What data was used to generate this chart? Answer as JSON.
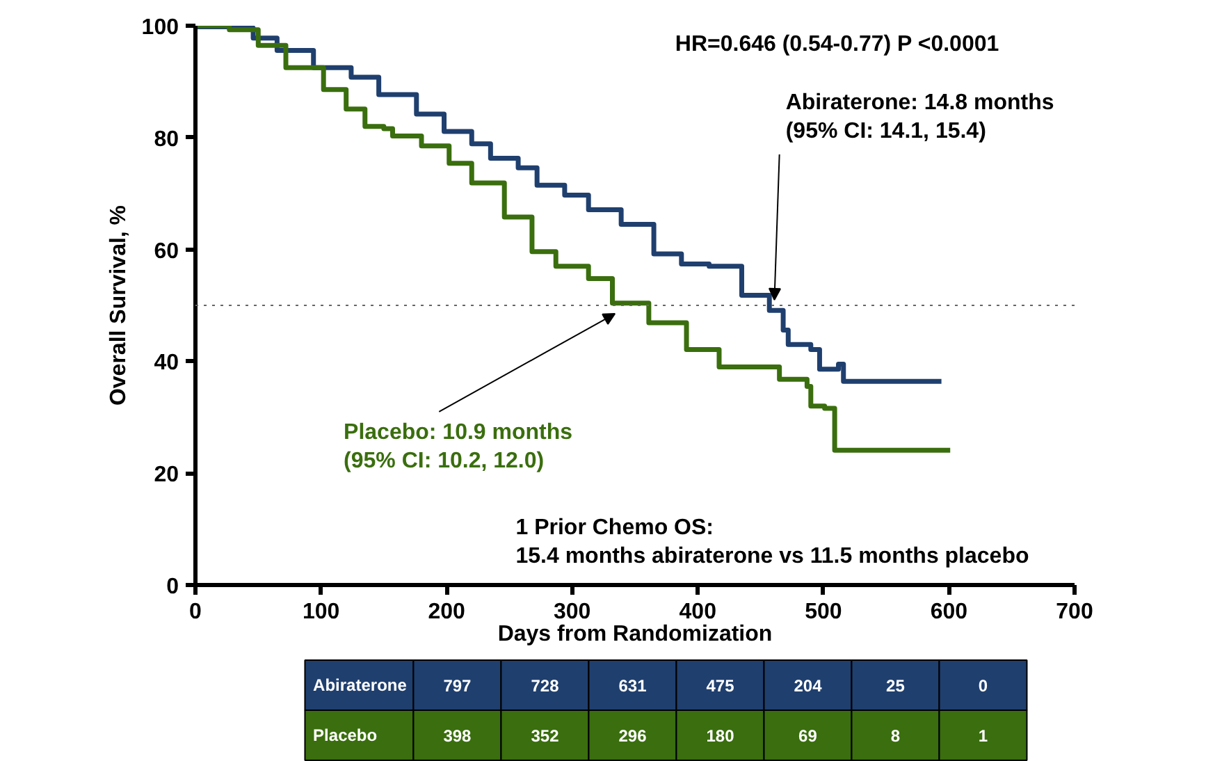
{
  "chart_data": {
    "type": "step",
    "xlabel": "Days from Randomization",
    "ylabel": "Overall Survival, %",
    "xlim": [
      0,
      700
    ],
    "xticks": [
      0,
      100,
      200,
      300,
      400,
      500,
      600,
      700
    ],
    "ylim": [
      0,
      100
    ],
    "yticks": [
      0,
      20,
      40,
      60,
      80,
      100
    ],
    "grid": false,
    "line_style": "solid",
    "marker": "none",
    "series": [
      {
        "name": "Abiraterone",
        "color": "#1f3f6e",
        "x": [
          0,
          2,
          27,
          46,
          65,
          94,
          124,
          146,
          176,
          198,
          220,
          235,
          257,
          272,
          294,
          313,
          339,
          365,
          387,
          409,
          435,
          457,
          468,
          472,
          490,
          497,
          512,
          516,
          594
        ],
        "values": [
          100,
          99.8,
          99.6,
          97.8,
          95.6,
          92.5,
          90.8,
          87.7,
          84.2,
          81.1,
          78.9,
          76.3,
          74.6,
          71.5,
          69.7,
          67.1,
          64.5,
          59.2,
          57.4,
          57,
          51.8,
          49.1,
          45.6,
          43,
          42.1,
          38.6,
          39.5,
          36.4,
          36.4
        ]
      },
      {
        "name": "Placebo",
        "color": "#3a6e0e",
        "x": [
          0,
          27,
          50,
          72,
          102,
          120,
          135,
          150,
          157,
          180,
          202,
          220,
          246,
          268,
          287,
          313,
          332,
          361,
          391,
          417,
          465,
          487,
          490,
          501,
          509,
          509,
          601
        ],
        "values": [
          100,
          99.3,
          96.5,
          92.5,
          88.6,
          85.1,
          82,
          81.6,
          80.3,
          78.5,
          75.4,
          71.9,
          65.8,
          59.6,
          57,
          54.8,
          50.4,
          46.9,
          42.1,
          39,
          36.8,
          35.5,
          32,
          31.6,
          28,
          24.1,
          24.1
        ]
      }
    ],
    "ref_lines": [
      {
        "axis": "y",
        "value": 50,
        "color": "#666666",
        "line_style": "dotted"
      }
    ],
    "annotations": [
      "HR=0.646 (0.54-0.77)  P <0.0001",
      {
        "text": "Abiraterone: 14.8 months\n(95% CI: 14.1, 15.4)",
        "x": 461,
        "y": 50
      },
      {
        "text": "Placebo: 10.9 months\n(95% CI: 10.2, 12.0)",
        "x": 332,
        "y": 50
      },
      "1 Prior Chemo OS:\n15.4 months abiraterone vs 11.5 months placebo",
      "797",
      "728",
      "631",
      "475",
      "204",
      "25",
      "0",
      "398",
      "352",
      "296",
      "180",
      "69",
      "8",
      "1"
    ]
  }
}
